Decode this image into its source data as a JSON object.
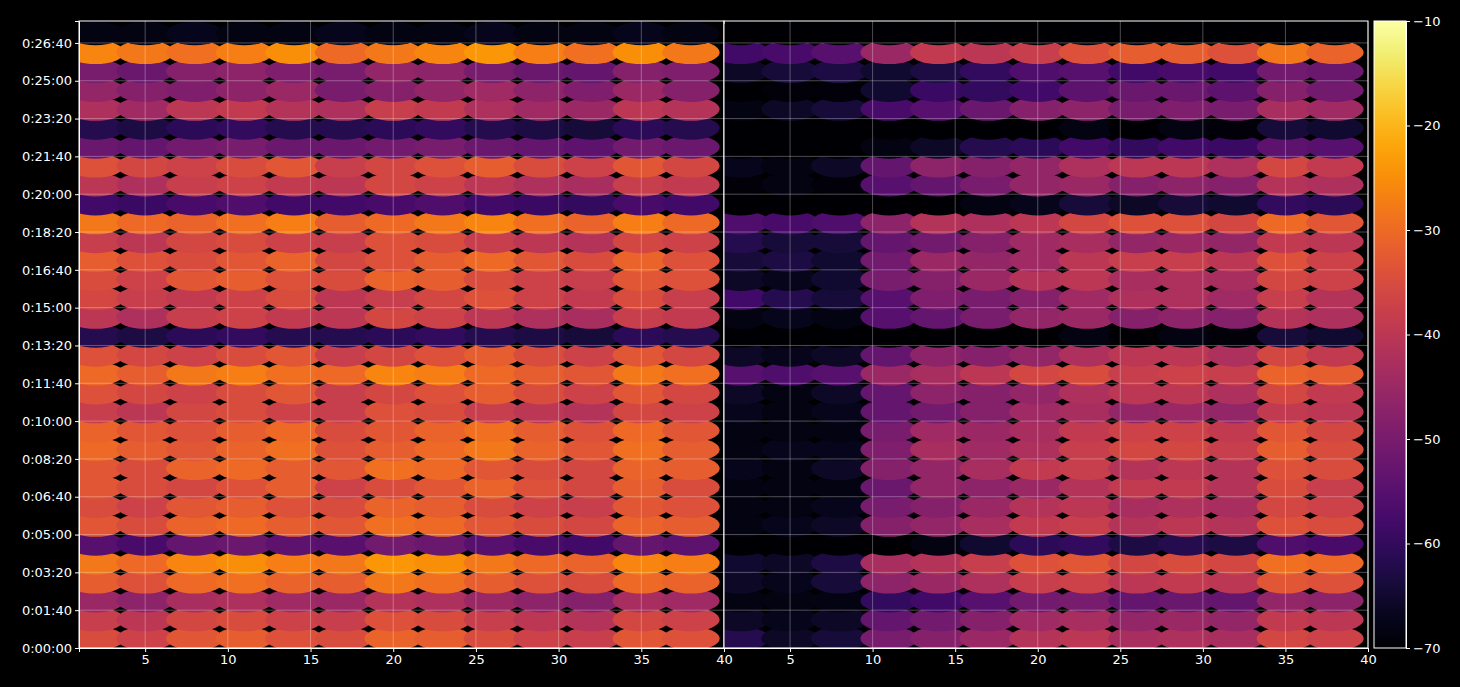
{
  "chart_data": {
    "type": "heatmap",
    "x": [
      2,
      5,
      8,
      11,
      14,
      17,
      20,
      23,
      26,
      29,
      32,
      35,
      38
    ],
    "y": [
      25,
      75,
      125,
      175,
      225,
      275,
      325,
      375,
      425,
      475,
      525,
      575,
      625,
      675,
      725,
      775,
      825,
      875,
      925,
      975,
      1025,
      1075,
      1125,
      1175,
      1225,
      1275,
      1325,
      1375,
      1425,
      1475,
      1525,
      1575,
      1625
    ],
    "xlim": [
      1,
      40
    ],
    "xticks": [
      5,
      10,
      15,
      20,
      25,
      30,
      35,
      40
    ],
    "ylim": [
      0,
      1658
    ],
    "yticks": [
      {
        "value": 0,
        "label": "0:00:00"
      },
      {
        "value": 100,
        "label": "0:01:40"
      },
      {
        "value": 200,
        "label": "0:03:20"
      },
      {
        "value": 300,
        "label": "0:05:00"
      },
      {
        "value": 400,
        "label": "0:06:40"
      },
      {
        "value": 500,
        "label": "0:08:20"
      },
      {
        "value": 600,
        "label": "0:10:00"
      },
      {
        "value": 700,
        "label": "0:11:40"
      },
      {
        "value": 800,
        "label": "0:13:20"
      },
      {
        "value": 900,
        "label": "0:15:00"
      },
      {
        "value": 1000,
        "label": "0:16:40"
      },
      {
        "value": 1100,
        "label": "0:18:20"
      },
      {
        "value": 1200,
        "label": "0:20:00"
      },
      {
        "value": 1300,
        "label": "0:21:40"
      },
      {
        "value": 1400,
        "label": "0:23:20"
      },
      {
        "value": 1500,
        "label": "0:25:00"
      },
      {
        "value": 1600,
        "label": "0:26:40"
      }
    ],
    "grid": true,
    "colorbar": {
      "range": [
        -70,
        -10
      ],
      "ticks": [
        {
          "value": -70,
          "label": "−70"
        },
        {
          "value": -60,
          "label": "−60"
        },
        {
          "value": -50,
          "label": "−50"
        },
        {
          "value": -40,
          "label": "−40"
        },
        {
          "value": -30,
          "label": "−30"
        },
        {
          "value": -20,
          "label": "−20"
        },
        {
          "value": -10,
          "label": "−10"
        }
      ]
    },
    "panels": [
      {
        "z": [
          [
            -35,
            -37,
            -33,
            -32,
            -34,
            -35,
            -31,
            -32,
            -35,
            -37,
            -38,
            -33,
            -34
          ],
          [
            -38,
            -40,
            -36,
            -35,
            -37,
            -38,
            -34,
            -35,
            -38,
            -40,
            -41,
            -36,
            -37
          ],
          [
            -45,
            -47,
            -43,
            -42,
            -44,
            -45,
            -41,
            -42,
            -45,
            -47,
            -48,
            -43,
            -44
          ],
          [
            -32,
            -34,
            -30,
            -29,
            -31,
            -32,
            -28,
            -29,
            -32,
            -34,
            -35,
            -30,
            -31
          ],
          [
            -28,
            -30,
            -26,
            -25,
            -27,
            -28,
            -24,
            -25,
            -28,
            -30,
            -31,
            -26,
            -27
          ],
          [
            -55,
            -57,
            -53,
            -52,
            -54,
            -55,
            -51,
            -52,
            -55,
            -57,
            -58,
            -53,
            -54
          ],
          [
            -33,
            -35,
            -31,
            -30,
            -32,
            -33,
            -29,
            -30,
            -33,
            -35,
            -36,
            -31,
            -32
          ],
          [
            -35,
            -37,
            -33,
            -32,
            -34,
            -35,
            -31,
            -32,
            -35,
            -37,
            -38,
            -33,
            -34
          ],
          [
            -33,
            -35,
            -36,
            -34,
            -32,
            -37,
            -35,
            -33,
            -31,
            -34,
            -36,
            -32,
            -35
          ],
          [
            -33,
            -35,
            -31,
            -30,
            -32,
            -33,
            -29,
            -30,
            -33,
            -35,
            -36,
            -31,
            -32
          ],
          [
            -30,
            -32,
            -33,
            -31,
            -29,
            -34,
            -32,
            -30,
            -28,
            -31,
            -33,
            -29,
            -32
          ],
          [
            -31,
            -33,
            -34,
            -32,
            -30,
            -35,
            -33,
            -31,
            -29,
            -32,
            -34,
            -30,
            -33
          ],
          [
            -38,
            -40,
            -36,
            -35,
            -37,
            -38,
            -34,
            -35,
            -38,
            -40,
            -41,
            -36,
            -37
          ],
          [
            -34,
            -36,
            -37,
            -35,
            -33,
            -38,
            -36,
            -34,
            -32,
            -35,
            -37,
            -33,
            -36
          ],
          [
            -30,
            -32,
            -28,
            -27,
            -29,
            -30,
            -26,
            -27,
            -30,
            -32,
            -33,
            -28,
            -29
          ],
          [
            -34,
            -36,
            -37,
            -35,
            -33,
            -38,
            -36,
            -34,
            -32,
            -35,
            -37,
            -33,
            -36
          ],
          [
            -62,
            -63,
            -61,
            -60,
            -62,
            -62,
            -61,
            -60,
            -62,
            -63,
            -64,
            -61,
            -62
          ],
          [
            -40,
            -42,
            -38,
            -37,
            -39,
            -40,
            -36,
            -37,
            -40,
            -42,
            -43,
            -38,
            -39
          ],
          [
            -36,
            -38,
            -39,
            -37,
            -35,
            -40,
            -38,
            -36,
            -34,
            -37,
            -39,
            -35,
            -38
          ],
          [
            -35,
            -37,
            -33,
            -32,
            -34,
            -35,
            -31,
            -32,
            -35,
            -37,
            -38,
            -33,
            -34
          ],
          [
            -32,
            -34,
            -35,
            -33,
            -31,
            -36,
            -34,
            -32,
            -30,
            -33,
            -35,
            -31,
            -34
          ],
          [
            -38,
            -40,
            -36,
            -35,
            -37,
            -38,
            -34,
            -35,
            -38,
            -40,
            -41,
            -36,
            -37
          ],
          [
            -28,
            -30,
            -31,
            -29,
            -27,
            -32,
            -30,
            -28,
            -26,
            -29,
            -31,
            -27,
            -30
          ],
          [
            -58,
            -59,
            -57,
            -56,
            -58,
            -58,
            -57,
            -56,
            -58,
            -59,
            -60,
            -57,
            -58
          ],
          [
            -40,
            -42,
            -38,
            -37,
            -39,
            -40,
            -36,
            -37,
            -40,
            -42,
            -43,
            -38,
            -39
          ],
          [
            -34,
            -36,
            -37,
            -35,
            -33,
            -38,
            -36,
            -34,
            -32,
            -35,
            -37,
            -33,
            -36
          ],
          [
            -52,
            -53,
            -51,
            -50,
            -52,
            -52,
            -51,
            -50,
            -52,
            -53,
            -54,
            -51,
            -52
          ],
          [
            -62,
            -63,
            -61,
            -60,
            -62,
            -62,
            -61,
            -60,
            -62,
            -63,
            -64,
            -61,
            -62
          ],
          [
            -42,
            -44,
            -40,
            -39,
            -41,
            -42,
            -38,
            -39,
            -42,
            -44,
            -45,
            -40,
            -41
          ],
          [
            -46,
            -48,
            -49,
            -47,
            -45,
            -50,
            -48,
            -46,
            -44,
            -47,
            -49,
            -45,
            -48
          ],
          [
            -50,
            -52,
            -48,
            -47,
            -49,
            -50,
            -46,
            -47,
            -50,
            -52,
            -53,
            -48,
            -49
          ],
          [
            -26,
            -28,
            -29,
            -27,
            -25,
            -30,
            -28,
            -26,
            -24,
            -27,
            -29,
            -25,
            -28
          ],
          [
            -68,
            -68,
            -67,
            -68,
            -68,
            -67,
            -68,
            -68,
            -67,
            -68,
            -68,
            -67,
            -68
          ]
        ]
      },
      {
        "z": [
          [
            -62,
            -66,
            -64,
            -50,
            -48,
            -45,
            -41,
            -40,
            -43,
            -42,
            -43,
            -36,
            -37
          ],
          [
            -66,
            -67,
            -66,
            -53,
            -51,
            -48,
            -44,
            -43,
            -46,
            -45,
            -46,
            -39,
            -40
          ],
          [
            -68,
            -68,
            -68,
            -60,
            -58,
            -55,
            -51,
            -50,
            -53,
            -52,
            -53,
            -46,
            -47
          ],
          [
            -66,
            -67,
            -64,
            -47,
            -45,
            -42,
            -38,
            -37,
            -40,
            -39,
            -40,
            -33,
            -34
          ],
          [
            -65,
            -66,
            -63,
            -43,
            -41,
            -38,
            -34,
            -33,
            -36,
            -35,
            -36,
            -29,
            -30
          ],
          [
            -70,
            -70,
            -70,
            -70,
            -68,
            -65,
            -61,
            -60,
            -63,
            -62,
            -63,
            -56,
            -57
          ],
          [
            -68,
            -67,
            -66,
            -48,
            -46,
            -43,
            -39,
            -38,
            -41,
            -40,
            -41,
            -34,
            -35
          ],
          [
            -68,
            -68,
            -67,
            -50,
            -48,
            -45,
            -41,
            -40,
            -43,
            -42,
            -43,
            -36,
            -37
          ],
          [
            -68,
            -68,
            -68,
            -52,
            -46,
            -47,
            -45,
            -41,
            -39,
            -39,
            -41,
            -35,
            -38
          ],
          [
            -67,
            -68,
            -66,
            -48,
            -46,
            -43,
            -39,
            -38,
            -41,
            -40,
            -41,
            -34,
            -35
          ],
          [
            -68,
            -67,
            -67,
            -49,
            -43,
            -44,
            -42,
            -38,
            -36,
            -36,
            -38,
            -32,
            -35
          ],
          [
            -68,
            -68,
            -68,
            -50,
            -44,
            -45,
            -43,
            -39,
            -37,
            -37,
            -39,
            -33,
            -36
          ],
          [
            -67,
            -68,
            -67,
            -53,
            -51,
            -48,
            -44,
            -43,
            -46,
            -45,
            -46,
            -39,
            -40
          ],
          [
            -66,
            -68,
            -66,
            -53,
            -47,
            -48,
            -46,
            -42,
            -40,
            -40,
            -42,
            -36,
            -39
          ],
          [
            -55,
            -56,
            -55,
            -45,
            -43,
            -40,
            -36,
            -35,
            -38,
            -37,
            -38,
            -31,
            -32
          ],
          [
            -66,
            -67,
            -66,
            -53,
            -47,
            -48,
            -46,
            -42,
            -40,
            -40,
            -42,
            -36,
            -39
          ],
          [
            -70,
            -70,
            -70,
            -70,
            -70,
            -70,
            -70,
            -68,
            -70,
            -68,
            -69,
            -64,
            -65
          ],
          [
            -68,
            -67,
            -68,
            -55,
            -53,
            -50,
            -46,
            -45,
            -48,
            -47,
            -48,
            -41,
            -42
          ],
          [
            -58,
            -62,
            -64,
            -55,
            -49,
            -50,
            -48,
            -44,
            -42,
            -42,
            -44,
            -38,
            -41
          ],
          [
            -66,
            -67,
            -65,
            -50,
            -48,
            -45,
            -41,
            -40,
            -43,
            -42,
            -43,
            -36,
            -37
          ],
          [
            -64,
            -63,
            -65,
            -51,
            -45,
            -46,
            -44,
            -40,
            -38,
            -38,
            -40,
            -34,
            -37
          ],
          [
            -62,
            -64,
            -64,
            -53,
            -51,
            -48,
            -44,
            -43,
            -46,
            -45,
            -46,
            -39,
            -40
          ],
          [
            -56,
            -57,
            -56,
            -47,
            -41,
            -42,
            -40,
            -36,
            -34,
            -34,
            -36,
            -30,
            -33
          ],
          [
            -70,
            -70,
            -70,
            -70,
            -70,
            -68,
            -67,
            -64,
            -66,
            -64,
            -65,
            -60,
            -61
          ],
          [
            -69,
            -68,
            -69,
            -55,
            -53,
            -50,
            -46,
            -45,
            -48,
            -47,
            -48,
            -41,
            -42
          ],
          [
            -67,
            -68,
            -66,
            -53,
            -47,
            -48,
            -46,
            -42,
            -40,
            -40,
            -42,
            -36,
            -39
          ],
          [
            -70,
            -70,
            -70,
            -68,
            -66,
            -62,
            -61,
            -58,
            -60,
            -58,
            -59,
            -54,
            -55
          ],
          [
            -70,
            -70,
            -70,
            -70,
            -70,
            -70,
            -70,
            -68,
            -70,
            -68,
            -69,
            -64,
            -65
          ],
          [
            -68,
            -66,
            -64,
            -57,
            -55,
            -52,
            -48,
            -47,
            -50,
            -49,
            -50,
            -43,
            -44
          ],
          [
            -70,
            -69,
            -69,
            -65,
            -59,
            -60,
            -58,
            -54,
            -52,
            -52,
            -54,
            -48,
            -51
          ],
          [
            -66,
            -64,
            -63,
            -65,
            -63,
            -60,
            -56,
            -55,
            -58,
            -57,
            -58,
            -51,
            -52
          ],
          [
            -58,
            -57,
            -55,
            -45,
            -39,
            -40,
            -38,
            -34,
            -32,
            -32,
            -34,
            -28,
            -31
          ],
          [
            -70,
            -70,
            -70,
            -70,
            -70,
            -70,
            -70,
            -70,
            -70,
            -70,
            -70,
            -70,
            -70
          ]
        ]
      }
    ]
  }
}
